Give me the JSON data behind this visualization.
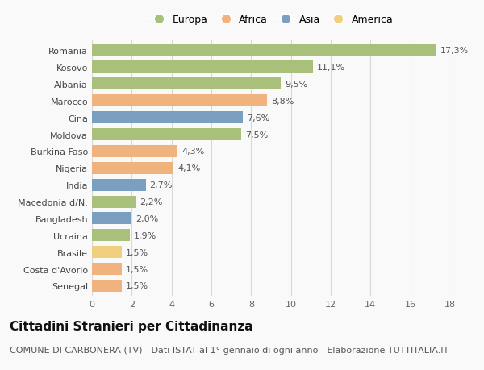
{
  "countries": [
    "Romania",
    "Kosovo",
    "Albania",
    "Marocco",
    "Cina",
    "Moldova",
    "Burkina Faso",
    "Nigeria",
    "India",
    "Macedonia d/N.",
    "Bangladesh",
    "Ucraina",
    "Brasile",
    "Costa d'Avorio",
    "Senegal"
  ],
  "values": [
    17.3,
    11.1,
    9.5,
    8.8,
    7.6,
    7.5,
    4.3,
    4.1,
    2.7,
    2.2,
    2.0,
    1.9,
    1.5,
    1.5,
    1.5
  ],
  "labels": [
    "17,3%",
    "11,1%",
    "9,5%",
    "8,8%",
    "7,6%",
    "7,5%",
    "4,3%",
    "4,1%",
    "2,7%",
    "2,2%",
    "2,0%",
    "1,9%",
    "1,5%",
    "1,5%",
    "1,5%"
  ],
  "continents": [
    "Europa",
    "Europa",
    "Europa",
    "Africa",
    "Asia",
    "Europa",
    "Africa",
    "Africa",
    "Asia",
    "Europa",
    "Asia",
    "Europa",
    "America",
    "Africa",
    "Africa"
  ],
  "continent_colors": {
    "Europa": "#a8c07a",
    "Africa": "#f0b37e",
    "Asia": "#7a9fc0",
    "America": "#f0d07e"
  },
  "legend_order": [
    "Europa",
    "Africa",
    "Asia",
    "America"
  ],
  "xlim": [
    0,
    18
  ],
  "xticks": [
    0,
    2,
    4,
    6,
    8,
    10,
    12,
    14,
    16,
    18
  ],
  "title": "Cittadini Stranieri per Cittadinanza",
  "subtitle": "COMUNE DI CARBONERA (TV) - Dati ISTAT al 1° gennaio di ogni anno - Elaborazione TUTTITALIA.IT",
  "background_color": "#f9f9f9",
  "grid_color": "#d8d8d8",
  "bar_height": 0.72,
  "title_fontsize": 11,
  "subtitle_fontsize": 8,
  "label_fontsize": 8,
  "tick_fontsize": 8,
  "legend_fontsize": 9
}
